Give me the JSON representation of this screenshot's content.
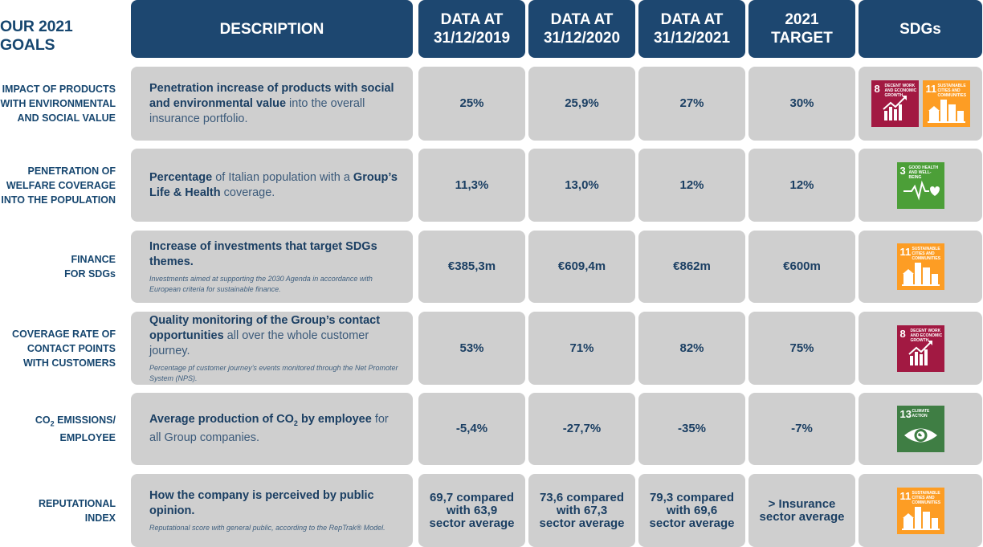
{
  "header": {
    "title": "OUR 2021 GOALS",
    "description": "DESCRIPTION",
    "col2019": "DATA AT\n31/12/2019",
    "col2020": "DATA AT\n31/12/2020",
    "col2021": "DATA AT\n31/12/2021",
    "target": "2021\nTARGET",
    "sdgs": "SDGs"
  },
  "colors": {
    "header_bg": "#1d4770",
    "cell_bg": "#cfcfcf",
    "sdg8": "#a21942",
    "sdg11": "#fd9d24",
    "sdg3": "#4c9f38",
    "sdg13": "#3f7e44"
  },
  "rows": [
    {
      "label": "IMPACT OF PRODUCTS\nWITH ENVIRONMENTAL\nAND SOCIAL VALUE",
      "desc_bold": "Penetration increase of products with social and environmental value",
      "desc_rest": " into the overall insurance portfolio.",
      "note": "",
      "v2019": "25%",
      "v2020": "25,9%",
      "v2021": "27%",
      "target": "30%",
      "sdgs": [
        {
          "num": "8",
          "caption": "DECENT WORK AND ECONOMIC GROWTH",
          "icon": "growth-chart-icon"
        },
        {
          "num": "11",
          "caption": "SUSTAINABLE CITIES AND COMMUNITIES",
          "icon": "city-buildings-icon"
        }
      ]
    },
    {
      "label": "PENETRATION OF\nWELFARE COVERAGE\nINTO THE POPULATION",
      "desc_part1": "Percentage",
      "desc_part2": " of Italian population with a ",
      "desc_part3": "Group’s Life & Health",
      "desc_part4": " coverage.",
      "v2019": "11,3%",
      "v2020": "13,0%",
      "v2021": "12%",
      "target": "12%",
      "sdgs": [
        {
          "num": "3",
          "caption": "GOOD HEALTH AND WELL-BEING",
          "icon": "heartbeat-icon"
        }
      ]
    },
    {
      "label": "FINANCE\nFOR SDGs",
      "desc_bold": "Increase of investments that target SDGs themes.",
      "note": "Investments aimed at supporting the 2030 Agenda in accordance with European criteria for sustainable finance.",
      "v2019": "€385,3m",
      "v2020": "€609,4m",
      "v2021": "€862m",
      "target": "€600m",
      "sdgs": [
        {
          "num": "11",
          "caption": "SUSTAINABLE CITIES AND COMMUNITIES",
          "icon": "city-buildings-icon"
        }
      ]
    },
    {
      "label": "COVERAGE RATE OF\nCONTACT POINTS\nWITH CUSTOMERS",
      "desc_bold": "Quality monitoring of the Group’s contact opportunities",
      "desc_rest": " all over the whole customer journey.",
      "note": "Percentage pf customer journey’s events monitored through the Net Promoter System (NPS).",
      "v2019": "53%",
      "v2020": "71%",
      "v2021": "82%",
      "target": "75%",
      "sdgs": [
        {
          "num": "8",
          "caption": "DECENT WORK AND ECONOMIC GROWTH",
          "icon": "growth-chart-icon"
        }
      ]
    },
    {
      "label_part1": "CO",
      "label_sub": "2",
      "label_part2": " EMISSIONS/\nEMPLOYEE",
      "desc_part1": "Average production of  CO",
      "desc_sub": "2",
      "desc_part2": " by employee",
      "desc_part3": " for all Group companies.",
      "v2019": "-5,4%",
      "v2020": "-27,7%",
      "v2021": "-35%",
      "target": "-7%",
      "sdgs": [
        {
          "num": "13",
          "caption": "CLIMATE ACTION",
          "icon": "eye-globe-icon"
        }
      ]
    },
    {
      "label": "REPUTATIONAL\nINDEX",
      "desc_bold": "How the company is perceived by public opinion.",
      "note": "Reputational score with general public, according to the RepTrak® Model.",
      "v2019": "69,7 compared\nwith 63,9\nsector average",
      "v2020": "73,6 compared\nwith 67,3\nsector average",
      "v2021": "79,3 compared\nwith 69,6\nsector average",
      "target": "> Insurance\nsector average",
      "sdgs": [
        {
          "num": "11",
          "caption": "SUSTAINABLE CITIES AND COMMUNITIES",
          "icon": "city-buildings-icon"
        }
      ]
    }
  ]
}
